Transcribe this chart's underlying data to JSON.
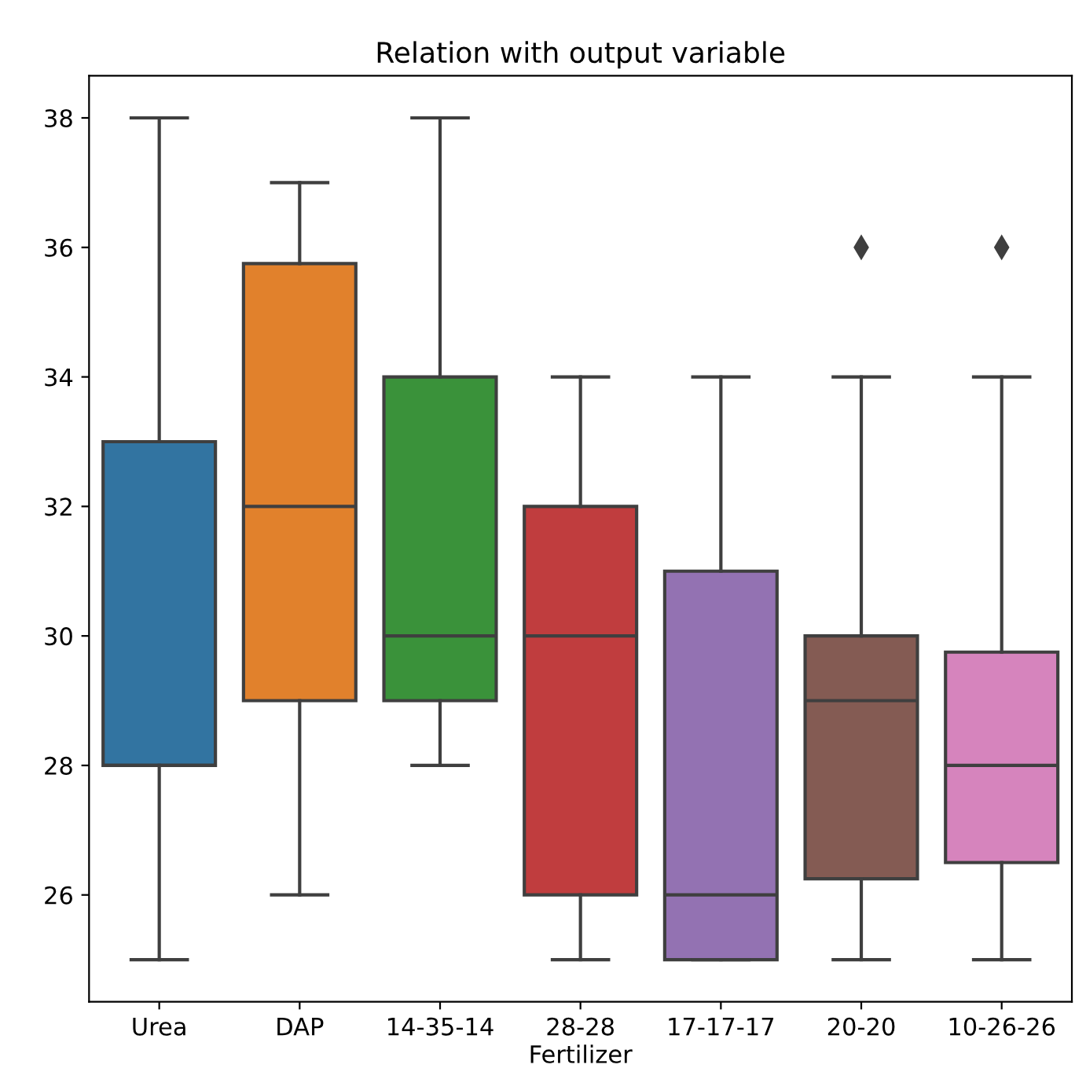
{
  "chart_data": {
    "type": "box",
    "title": "Relation with output variable",
    "xlabel": "Fertilizer",
    "categories": [
      "Urea",
      "DAP",
      "14-35-14",
      "28-28",
      "17-17-17",
      "20-20",
      "10-26-26"
    ],
    "colors": [
      "#3274a1",
      "#e1812c",
      "#3a923a",
      "#c03d3e",
      "#9372b2",
      "#845b53",
      "#d684bd"
    ],
    "boxes": [
      {
        "low": 25,
        "q1": 28,
        "median": 28,
        "q3": 33,
        "high": 38
      },
      {
        "low": 26,
        "q1": 29,
        "median": 32,
        "q3": 35.75,
        "high": 37
      },
      {
        "low": 28,
        "q1": 29,
        "median": 30,
        "q3": 34,
        "high": 38
      },
      {
        "low": 25,
        "q1": 26,
        "median": 30,
        "q3": 32,
        "high": 34
      },
      {
        "low": 25,
        "q1": 25,
        "median": 26,
        "q3": 31,
        "high": 34
      },
      {
        "low": 25,
        "q1": 26.25,
        "median": 29,
        "q3": 30,
        "high": 34,
        "outliers": [
          36
        ]
      },
      {
        "low": 25,
        "q1": 26.5,
        "median": 28,
        "q3": 29.75,
        "high": 34,
        "outliers": [
          36
        ]
      }
    ],
    "ylim": [
      24.35,
      38.65
    ],
    "yticks": [
      26,
      28,
      30,
      32,
      34,
      36,
      38
    ],
    "grid": false,
    "legend": false
  }
}
